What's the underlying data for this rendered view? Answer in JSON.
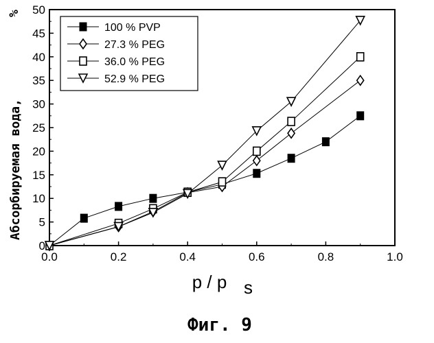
{
  "chart_data": {
    "type": "line",
    "xlabel": "p / p",
    "xlabel_sub": "s",
    "ylabel": "Абсорбируемая вода,",
    "ylabel_unit": "%",
    "caption": "Фиг. 9",
    "xlim": [
      0.0,
      1.0
    ],
    "ylim": [
      0,
      50
    ],
    "x_ticks": [
      "0.0",
      "0.2",
      "0.4",
      "0.6",
      "0.8",
      "1.0"
    ],
    "y_ticks": [
      "0",
      "5",
      "10",
      "15",
      "20",
      "25",
      "30",
      "35",
      "40",
      "45",
      "50"
    ],
    "legend_position": "top-left",
    "grid": false,
    "series": [
      {
        "name": "100  % PVP",
        "marker": "filled-square",
        "x": [
          0.0,
          0.1,
          0.2,
          0.3,
          0.4,
          0.5,
          0.6,
          0.7,
          0.8,
          0.9
        ],
        "y": [
          0.0,
          5.8,
          8.3,
          10.0,
          11.3,
          13.0,
          15.3,
          18.5,
          22.0,
          27.5
        ]
      },
      {
        "name": "27.3 % PEG",
        "marker": "diamond",
        "x": [
          0.0,
          0.2,
          0.3,
          0.4,
          0.5,
          0.6,
          0.7,
          0.9
        ],
        "y": [
          0.0,
          4.0,
          7.2,
          11.2,
          12.5,
          18.0,
          23.8,
          35.0
        ]
      },
      {
        "name": "36.0 % PEG",
        "marker": "square",
        "x": [
          0.0,
          0.2,
          0.3,
          0.4,
          0.5,
          0.6,
          0.7,
          0.9
        ],
        "y": [
          0.0,
          4.7,
          7.8,
          11.3,
          13.5,
          20.0,
          26.3,
          40.0
        ]
      },
      {
        "name": "52.9 % PEG",
        "marker": "triangle-down",
        "x": [
          0.0,
          0.2,
          0.3,
          0.4,
          0.5,
          0.6,
          0.7,
          0.9
        ],
        "y": [
          0.0,
          4.0,
          7.0,
          11.0,
          17.0,
          24.3,
          30.5,
          47.7
        ]
      }
    ]
  }
}
